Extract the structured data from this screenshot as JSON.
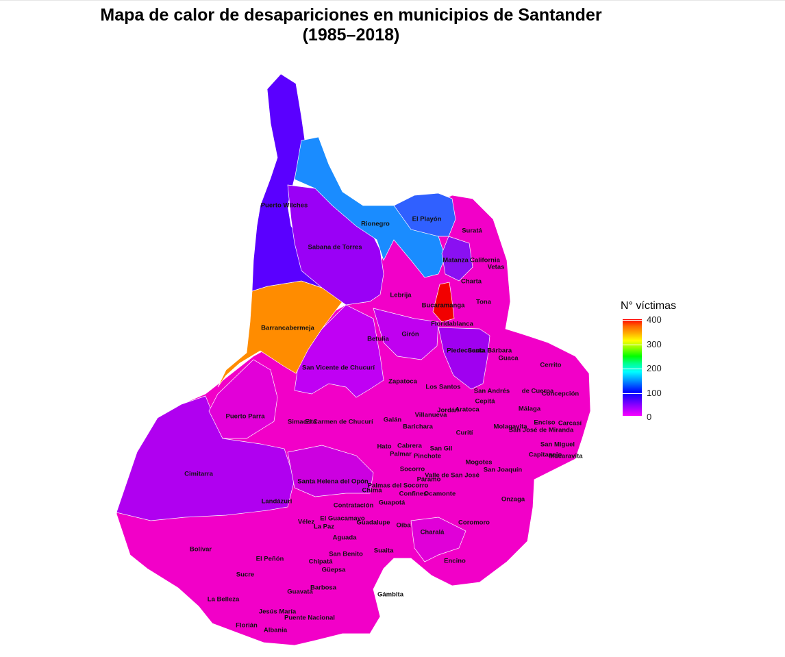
{
  "title_line1": "Mapa de calor de desapariciones en municipios de Santander",
  "title_line2": "(1985–2018)",
  "legend": {
    "title": "N° víctimas",
    "ticks": [
      "400",
      "300",
      "200",
      "100",
      "0"
    ],
    "colors": [
      "#ff0000",
      "#ffa000",
      "#00ff00",
      "#00d8ff",
      "#0000ff",
      "#ff00ff"
    ]
  },
  "municipalities": [
    {
      "name": "Puerto Wilches"
    },
    {
      "name": "Rionegro"
    },
    {
      "name": "El Playón"
    },
    {
      "name": "Suratá"
    },
    {
      "name": "Sabana de Torres"
    },
    {
      "name": "Matanza"
    },
    {
      "name": "California"
    },
    {
      "name": "Vetas"
    },
    {
      "name": "Charta"
    },
    {
      "name": "Lebrija"
    },
    {
      "name": "Bucaramanga"
    },
    {
      "name": "Tona"
    },
    {
      "name": "Floridablanca"
    },
    {
      "name": "Barrancabermeja"
    },
    {
      "name": "Girón"
    },
    {
      "name": "Betulia"
    },
    {
      "name": "Piedecuesta"
    },
    {
      "name": "Santa Bárbara"
    },
    {
      "name": "Guaca"
    },
    {
      "name": "Cerrito"
    },
    {
      "name": "San Vicente de Chucurí"
    },
    {
      "name": "Zapatoca"
    },
    {
      "name": "Los Santos"
    },
    {
      "name": "San Andrés"
    },
    {
      "name": "de Cuerpa"
    },
    {
      "name": "Concepción"
    },
    {
      "name": "Cepitá"
    },
    {
      "name": "Jordán"
    },
    {
      "name": "Aratoca"
    },
    {
      "name": "Málaga"
    },
    {
      "name": "Puerto Parra"
    },
    {
      "name": "Simacota"
    },
    {
      "name": "El Carmen de Chucurí"
    },
    {
      "name": "Galán"
    },
    {
      "name": "Villanueva"
    },
    {
      "name": "Barichara"
    },
    {
      "name": "Molagavita"
    },
    {
      "name": "Enciso"
    },
    {
      "name": "Carcasí"
    },
    {
      "name": "San José de Miranda"
    },
    {
      "name": "Curití"
    },
    {
      "name": "Hato"
    },
    {
      "name": "Cabrera"
    },
    {
      "name": "San Gil"
    },
    {
      "name": "San Miguel"
    },
    {
      "name": "Palmar"
    },
    {
      "name": "Pinchote"
    },
    {
      "name": "Capitanejo"
    },
    {
      "name": "Macaravita"
    },
    {
      "name": "Mogotes"
    },
    {
      "name": "Cimitarra"
    },
    {
      "name": "Socorro"
    },
    {
      "name": "San Joaquín"
    },
    {
      "name": "Valle de San José"
    },
    {
      "name": "Santa Helena del Opón"
    },
    {
      "name": "Páramo"
    },
    {
      "name": "Palmas del Socorro"
    },
    {
      "name": "Chima"
    },
    {
      "name": "Confines"
    },
    {
      "name": "Ocamonte"
    },
    {
      "name": "Onzaga"
    },
    {
      "name": "Landázuri"
    },
    {
      "name": "Contratación"
    },
    {
      "name": "Guapotá"
    },
    {
      "name": "El Guacamayo"
    },
    {
      "name": "Vélez"
    },
    {
      "name": "Guadalupe"
    },
    {
      "name": "La Paz"
    },
    {
      "name": "Oiba"
    },
    {
      "name": "Coromoro"
    },
    {
      "name": "Charalá"
    },
    {
      "name": "Aguada"
    },
    {
      "name": "Bolívar"
    },
    {
      "name": "San Benito"
    },
    {
      "name": "Suaita"
    },
    {
      "name": "El Peñón"
    },
    {
      "name": "Chipatá"
    },
    {
      "name": "Encino"
    },
    {
      "name": "Güepsa"
    },
    {
      "name": "Sucre"
    },
    {
      "name": "Barbosa"
    },
    {
      "name": "Guavatá"
    },
    {
      "name": "Gámbita"
    },
    {
      "name": "La Belleza"
    },
    {
      "name": "Jesús María"
    },
    {
      "name": "Puente Nacional"
    },
    {
      "name": "Florián"
    },
    {
      "name": "Albania"
    }
  ]
}
